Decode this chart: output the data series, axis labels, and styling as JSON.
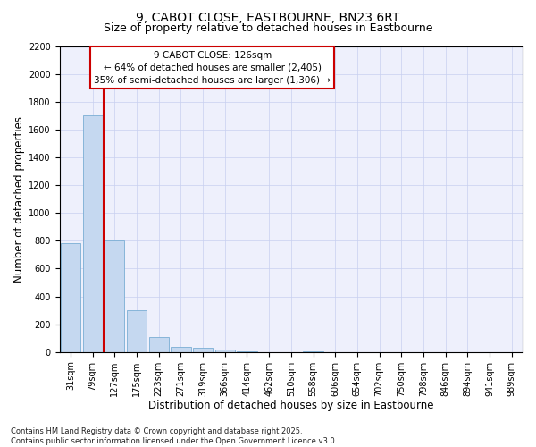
{
  "title1": "9, CABOT CLOSE, EASTBOURNE, BN23 6RT",
  "title2": "Size of property relative to detached houses in Eastbourne",
  "xlabel": "Distribution of detached houses by size in Eastbourne",
  "ylabel": "Number of detached properties",
  "categories": [
    "31sqm",
    "79sqm",
    "127sqm",
    "175sqm",
    "223sqm",
    "271sqm",
    "319sqm",
    "366sqm",
    "414sqm",
    "462sqm",
    "510sqm",
    "558sqm",
    "606sqm",
    "654sqm",
    "702sqm",
    "750sqm",
    "798sqm",
    "846sqm",
    "894sqm",
    "941sqm",
    "989sqm"
  ],
  "values": [
    780,
    1700,
    800,
    300,
    110,
    40,
    30,
    20,
    5,
    0,
    0,
    5,
    0,
    0,
    0,
    0,
    0,
    0,
    0,
    0,
    0
  ],
  "bar_color": "#c5d8f0",
  "bar_edge_color": "#7aaed4",
  "vline_color": "#cc0000",
  "annotation_box_text": "9 CABOT CLOSE: 126sqm\n← 64% of detached houses are smaller (2,405)\n35% of semi-detached houses are larger (1,306) →",
  "annotation_box_color": "#cc0000",
  "annotation_box_fill": "#ffffff",
  "ylim": [
    0,
    2200
  ],
  "yticks": [
    0,
    200,
    400,
    600,
    800,
    1000,
    1200,
    1400,
    1600,
    1800,
    2000,
    2200
  ],
  "grid_color": "#c8d0f0",
  "background_color": "#eef0fc",
  "footer": "Contains HM Land Registry data © Crown copyright and database right 2025.\nContains public sector information licensed under the Open Government Licence v3.0.",
  "title_fontsize": 10,
  "subtitle_fontsize": 9,
  "axis_label_fontsize": 8.5,
  "tick_fontsize": 7,
  "footer_fontsize": 6,
  "annotation_fontsize": 7.5
}
